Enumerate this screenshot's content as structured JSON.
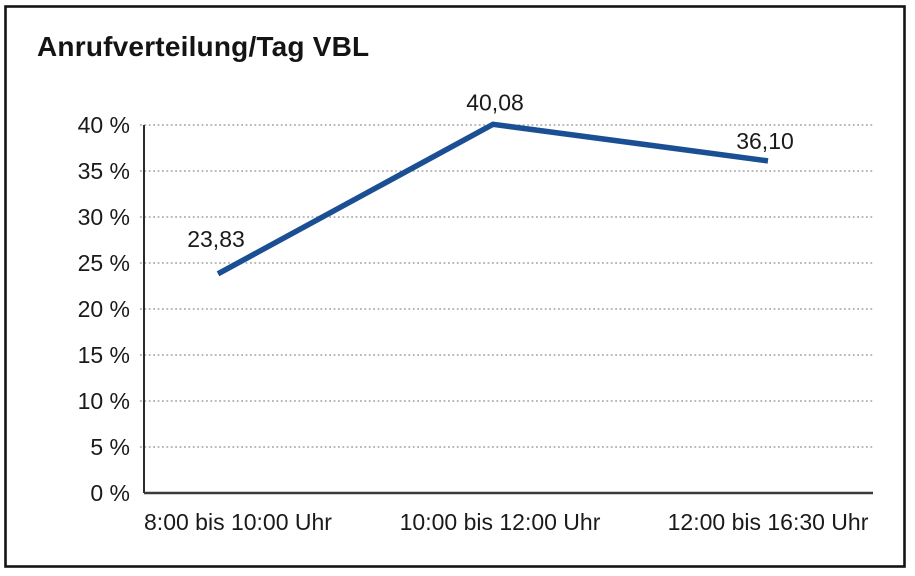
{
  "window": {
    "background": "#ffffff",
    "frame_border_color": "#141414"
  },
  "chart_data": {
    "type": "line",
    "title": "Anrufverteilung/Tag VBL",
    "categories": [
      "8:00 bis 10:00 Uhr",
      "10:00 bis 12:00 Uhr",
      "12:00 bis 16:30 Uhr"
    ],
    "values": [
      23.83,
      40.08,
      36.1
    ],
    "data_labels": [
      "23,83",
      "40,08",
      "36,10"
    ],
    "xlabel": "",
    "ylabel": "",
    "ylim": [
      0,
      40
    ],
    "y_tick_step": 5,
    "y_tick_labels": [
      "0 %",
      "5 %",
      "10 %",
      "15 %",
      "20 %",
      "25 %",
      "30 %",
      "35 %",
      "40 %"
    ],
    "grid": "horizontal dotted gridlines",
    "legend_position": "none",
    "line_color": "#1b4f94",
    "text_color": "#1a1a1a",
    "gridline_color": "#8f8f8f"
  }
}
